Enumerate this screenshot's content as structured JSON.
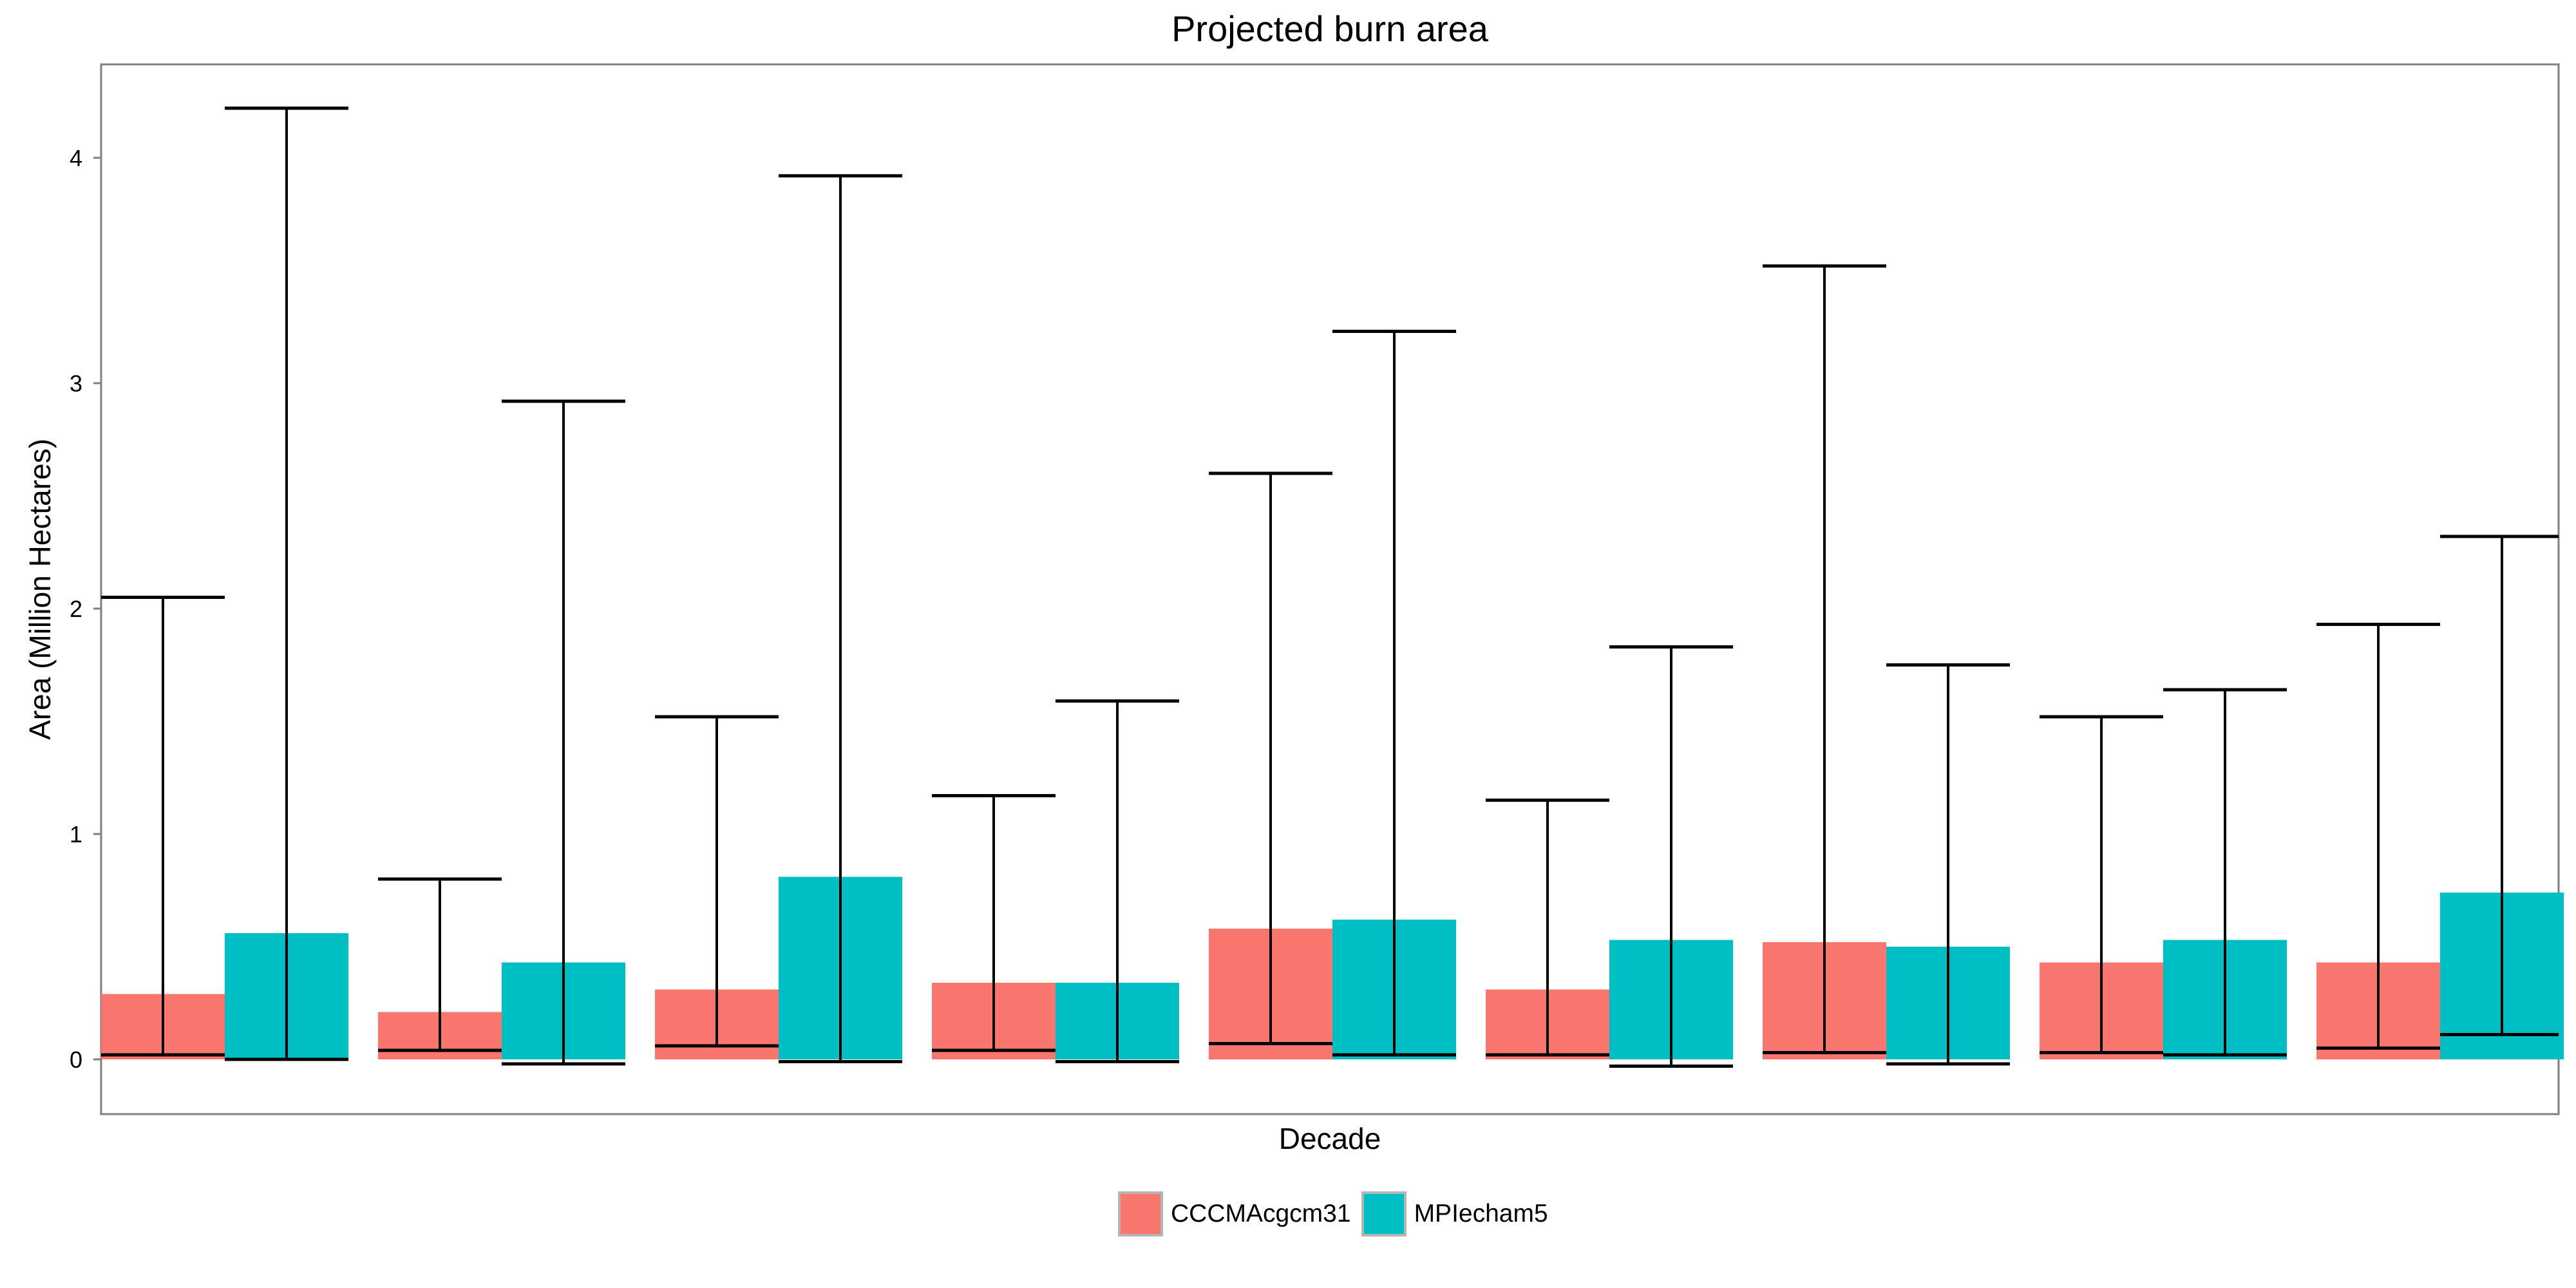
{
  "chart_data": {
    "type": "bar",
    "title": "Projected burn area",
    "xlabel": "Decade",
    "ylabel": "Area (Million Hectares)",
    "ylim": [
      -0.25,
      4.42
    ],
    "yticks": [
      0,
      1,
      2,
      3,
      4
    ],
    "grid": false,
    "legend_position": "bottom",
    "categories": [
      "",
      "",
      "",
      "",
      "",
      "",
      "",
      "",
      ""
    ],
    "series": [
      {
        "name": "CCCMAcgcm31",
        "color": "#F8766D",
        "values": [
          0.29,
          0.21,
          0.31,
          0.34,
          0.58,
          0.31,
          0.52,
          0.43,
          0.43
        ],
        "lower": [
          0.02,
          0.04,
          0.06,
          0.04,
          0.07,
          0.02,
          0.03,
          0.03,
          0.05
        ],
        "upper": [
          2.05,
          0.8,
          1.52,
          1.17,
          2.6,
          1.15,
          3.52,
          1.52,
          1.93
        ]
      },
      {
        "name": "MPIecham5",
        "color": "#00BFC4",
        "values": [
          0.56,
          0.43,
          0.81,
          0.34,
          0.62,
          0.53,
          0.5,
          0.53,
          0.74
        ],
        "lower": [
          0.0,
          -0.02,
          -0.01,
          -0.01,
          0.02,
          -0.03,
          -0.02,
          0.02,
          0.11
        ],
        "upper": [
          4.22,
          2.92,
          3.92,
          1.59,
          3.23,
          1.83,
          1.75,
          1.64,
          2.32
        ]
      }
    ]
  }
}
